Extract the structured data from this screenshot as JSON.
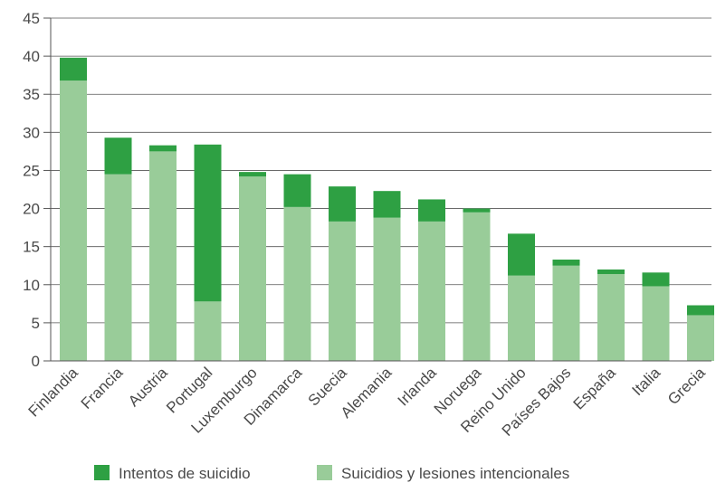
{
  "chart_data": {
    "type": "bar",
    "stacked": true,
    "title": "",
    "xlabel": "",
    "ylabel": "",
    "ylim": [
      0,
      45
    ],
    "yticks": [
      0,
      5,
      10,
      15,
      20,
      25,
      30,
      35,
      40,
      45
    ],
    "grid": "horizontal",
    "legend_position": "bottom",
    "categories": [
      "Finlandia",
      "Francia",
      "Austria",
      "Portugal",
      "Luxemburgo",
      "Dinamarca",
      "Suecia",
      "Alemania",
      "Irlanda",
      "Noruega",
      "Reino Unido",
      "Países Bajos",
      "España",
      "Italia",
      "Grecia"
    ],
    "series": [
      {
        "name": "Suicidios y lesiones intencionales",
        "color": "#99cc99",
        "values": [
          36.8,
          24.5,
          27.5,
          7.8,
          24.2,
          20.2,
          18.3,
          18.8,
          18.3,
          19.5,
          11.2,
          12.5,
          11.4,
          9.8,
          6.0
        ]
      },
      {
        "name": "Intentos de suicidio",
        "color": "#2ea043",
        "values": [
          3.0,
          4.8,
          0.8,
          20.6,
          0.6,
          4.3,
          4.6,
          3.5,
          2.9,
          0.5,
          5.5,
          0.8,
          0.6,
          1.8,
          1.3
        ]
      }
    ],
    "legend": [
      {
        "label": "Intentos de suicidio",
        "color": "#2ea043"
      },
      {
        "label": "Suicidios y lesiones intencionales",
        "color": "#99cc99"
      }
    ]
  }
}
